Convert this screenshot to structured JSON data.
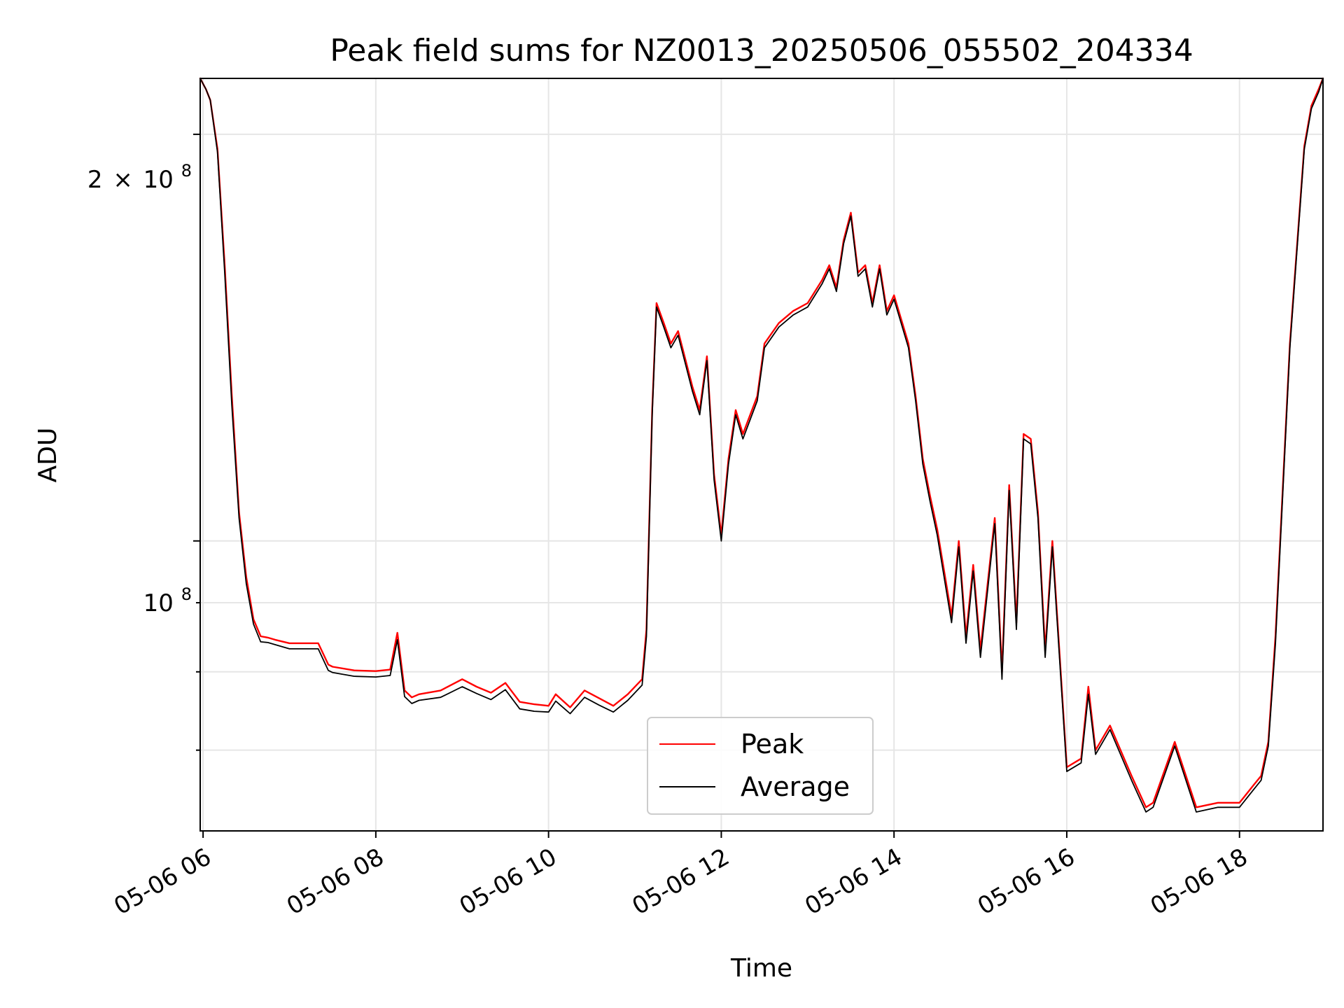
{
  "chart_data": {
    "type": "line",
    "title": "Peak field sums for NZ0013_20250506_055502_204334",
    "xlabel": "Time",
    "ylabel": "ADU",
    "y_scale": "log",
    "grid": true,
    "legend_position": "bottom-center",
    "x_ticks": [
      "05-06 06",
      "05-06 08",
      "05-06 10",
      "05-06 12",
      "05-06 14",
      "05-06 16",
      "05-06 18"
    ],
    "y_tick_labels": {
      "upper": {
        "base": "2",
        "times": "×",
        "power_base": "10",
        "exponent": "8"
      },
      "lower": {
        "power_base": "10",
        "exponent": "8"
      }
    },
    "xlim": [
      "2025-05-06 05:58",
      "2025-05-06 18:58"
    ],
    "ylim": [
      61000000,
      220000000
    ],
    "series": [
      {
        "name": "Peak",
        "color": "#ff0000",
        "x": [
          "05:58",
          "06:02",
          "06:05",
          "06:10",
          "06:15",
          "06:20",
          "06:25",
          "06:30",
          "06:35",
          "06:40",
          "06:45",
          "06:50",
          "07:00",
          "07:20",
          "07:27",
          "07:30",
          "07:45",
          "08:00",
          "08:10",
          "08:15",
          "08:20",
          "08:25",
          "08:30",
          "08:45",
          "09:00",
          "09:10",
          "09:20",
          "09:30",
          "09:40",
          "09:50",
          "10:00",
          "10:05",
          "10:15",
          "10:25",
          "10:35",
          "10:45",
          "10:55",
          "11:05",
          "11:08",
          "11:12",
          "11:15",
          "11:20",
          "11:25",
          "11:30",
          "11:40",
          "11:45",
          "11:50",
          "11:55",
          "12:00",
          "12:05",
          "12:10",
          "12:15",
          "12:25",
          "12:30",
          "12:40",
          "12:50",
          "13:00",
          "13:10",
          "13:15",
          "13:20",
          "13:25",
          "13:30",
          "13:35",
          "13:40",
          "13:45",
          "13:50",
          "13:55",
          "14:00",
          "14:10",
          "14:15",
          "14:20",
          "14:25",
          "14:30",
          "14:40",
          "14:45",
          "14:50",
          "14:55",
          "15:00",
          "15:10",
          "15:15",
          "15:20",
          "15:25",
          "15:30",
          "15:35",
          "15:40",
          "15:45",
          "15:50",
          "16:00",
          "16:10",
          "16:15",
          "16:20",
          "16:30",
          "16:45",
          "16:55",
          "17:00",
          "17:15",
          "17:30",
          "17:45",
          "18:00",
          "18:10",
          "18:15",
          "18:20",
          "18:25",
          "18:35",
          "18:45",
          "18:50",
          "18:55",
          "18:58"
        ],
        "values": [
          220000000,
          216000000,
          212000000,
          195000000,
          160000000,
          128000000,
          105000000,
          94000000,
          87500000,
          85000000,
          84800000,
          84500000,
          84000000,
          84000000,
          81000000,
          80700000,
          80200000,
          80100000,
          80300000,
          85500000,
          77500000,
          76600000,
          77000000,
          77500000,
          79000000,
          78000000,
          77200000,
          78500000,
          76000000,
          75700000,
          75500000,
          77000000,
          75300000,
          77500000,
          76500000,
          75500000,
          77000000,
          79000000,
          86000000,
          125000000,
          150000000,
          145000000,
          140000000,
          143000000,
          130000000,
          125000000,
          137000000,
          112000000,
          101000000,
          115000000,
          125000000,
          120000000,
          128000000,
          140000000,
          145000000,
          148000000,
          150000000,
          156000000,
          160000000,
          154000000,
          167000000,
          175000000,
          158000000,
          160000000,
          150000000,
          160000000,
          148000000,
          152000000,
          140000000,
          128000000,
          115000000,
          108000000,
          102000000,
          88000000,
          100000000,
          85000000,
          96000000,
          83000000,
          104000000,
          80000000,
          110000000,
          87000000,
          120000000,
          119000000,
          105000000,
          83000000,
          100000000,
          68000000,
          69000000,
          78000000,
          70000000,
          73000000,
          67000000,
          63500000,
          64000000,
          71000000,
          63500000,
          64000000,
          64000000,
          66000000,
          67000000,
          71000000,
          85000000,
          140000000,
          196000000,
          210000000,
          216000000,
          220000000
        ]
      },
      {
        "name": "Average",
        "color": "#000000",
        "x": [
          "05:58",
          "06:02",
          "06:05",
          "06:10",
          "06:15",
          "06:20",
          "06:25",
          "06:30",
          "06:35",
          "06:40",
          "06:45",
          "06:50",
          "07:00",
          "07:20",
          "07:27",
          "07:30",
          "07:45",
          "08:00",
          "08:10",
          "08:15",
          "08:20",
          "08:25",
          "08:30",
          "08:45",
          "09:00",
          "09:10",
          "09:20",
          "09:30",
          "09:40",
          "09:50",
          "10:00",
          "10:05",
          "10:15",
          "10:25",
          "10:35",
          "10:45",
          "10:55",
          "11:05",
          "11:08",
          "11:12",
          "11:15",
          "11:20",
          "11:25",
          "11:30",
          "11:40",
          "11:45",
          "11:50",
          "11:55",
          "12:00",
          "12:05",
          "12:10",
          "12:15",
          "12:25",
          "12:30",
          "12:40",
          "12:50",
          "13:00",
          "13:10",
          "13:15",
          "13:20",
          "13:25",
          "13:30",
          "13:35",
          "13:40",
          "13:45",
          "13:50",
          "13:55",
          "14:00",
          "14:10",
          "14:15",
          "14:20",
          "14:25",
          "14:30",
          "14:40",
          "14:45",
          "14:50",
          "14:55",
          "15:00",
          "15:10",
          "15:15",
          "15:20",
          "15:25",
          "15:30",
          "15:35",
          "15:40",
          "15:45",
          "15:50",
          "16:00",
          "16:10",
          "16:15",
          "16:20",
          "16:30",
          "16:45",
          "16:55",
          "17:00",
          "17:15",
          "17:30",
          "17:45",
          "18:00",
          "18:10",
          "18:15",
          "18:20",
          "18:25",
          "18:35",
          "18:45",
          "18:50",
          "18:55",
          "18:58"
        ],
        "values": [
          220000000,
          216000000,
          212000000,
          194000000,
          158000000,
          126000000,
          104000000,
          93000000,
          86800000,
          84200000,
          84100000,
          83800000,
          83200000,
          83200000,
          80200000,
          79900000,
          79400000,
          79300000,
          79500000,
          84500000,
          76700000,
          75800000,
          76200000,
          76600000,
          78000000,
          77100000,
          76300000,
          77600000,
          75100000,
          74800000,
          74700000,
          76100000,
          74500000,
          76600000,
          75600000,
          74700000,
          76200000,
          78200000,
          85000000,
          124000000,
          149000000,
          144000000,
          139000000,
          142000000,
          129000000,
          124000000,
          136000000,
          111000000,
          100000000,
          114000000,
          124000000,
          119000000,
          127000000,
          139000000,
          144000000,
          147000000,
          149000000,
          155000000,
          159000000,
          153000000,
          166000000,
          174000000,
          157000000,
          159000000,
          149000000,
          159000000,
          147000000,
          151000000,
          139000000,
          127000000,
          114000000,
          107000000,
          101000000,
          87000000,
          99000000,
          84000000,
          95000000,
          82000000,
          103000000,
          79000000,
          109000000,
          86000000,
          119000000,
          118000000,
          104000000,
          82000000,
          99000000,
          67500000,
          68500000,
          77000000,
          69500000,
          72500000,
          66500000,
          63000000,
          63500000,
          70500000,
          63000000,
          63500000,
          63500000,
          65500000,
          66500000,
          70500000,
          84000000,
          139000000,
          195000000,
          209000000,
          215000000,
          220000000
        ]
      }
    ]
  }
}
